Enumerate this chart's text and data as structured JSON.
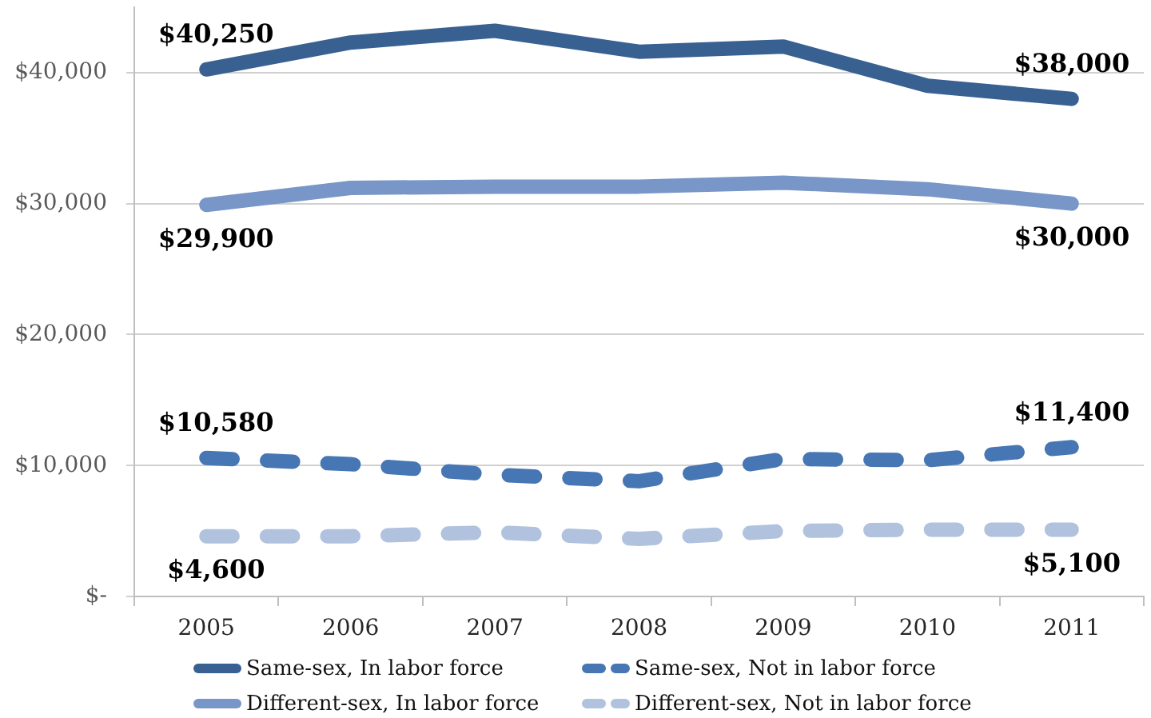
{
  "chart_data": {
    "type": "line",
    "categories": [
      "2005",
      "2006",
      "2007",
      "2008",
      "2009",
      "2010",
      "2011"
    ],
    "series": [
      {
        "name": "Same-sex, In labor force",
        "color": "#386192",
        "line_style": "solid",
        "values": [
          40250,
          42300,
          43200,
          41600,
          42000,
          39000,
          38000
        ],
        "value_labels": [
          "$40,250",
          null,
          null,
          null,
          null,
          null,
          "$38,000"
        ]
      },
      {
        "name": "Same-sex, Not in labor force",
        "color": "#4676b3",
        "line_style": "dashed",
        "values": [
          10580,
          10100,
          9300,
          8800,
          10500,
          10400,
          11400
        ],
        "value_labels": [
          "$10,580",
          null,
          null,
          null,
          null,
          null,
          "$11,400"
        ]
      },
      {
        "name": "Different-sex, In labor force",
        "color": "#7896c7",
        "line_style": "solid",
        "values": [
          29900,
          31200,
          31300,
          31300,
          31600,
          31100,
          30000
        ],
        "value_labels": [
          "$29,900",
          null,
          null,
          null,
          null,
          null,
          "$30,000"
        ]
      },
      {
        "name": "Different-sex, Not in labor force",
        "color": "#b0c2de",
        "line_style": "dashed",
        "values": [
          4600,
          4600,
          4900,
          4400,
          5000,
          5100,
          5100
        ],
        "value_labels": [
          "$4,600",
          null,
          null,
          null,
          null,
          null,
          "$5,100"
        ]
      }
    ],
    "ylim": [
      0,
      45000
    ],
    "yticks": [
      {
        "value": 0,
        "label": "$-"
      },
      {
        "value": 10000,
        "label": "$10,000"
      },
      {
        "value": 20000,
        "label": "$20,000"
      },
      {
        "value": 30000,
        "label": "$30,000"
      },
      {
        "value": 40000,
        "label": "$40,000"
      }
    ],
    "grid": "y",
    "legend": "bottom",
    "marker": "none"
  }
}
